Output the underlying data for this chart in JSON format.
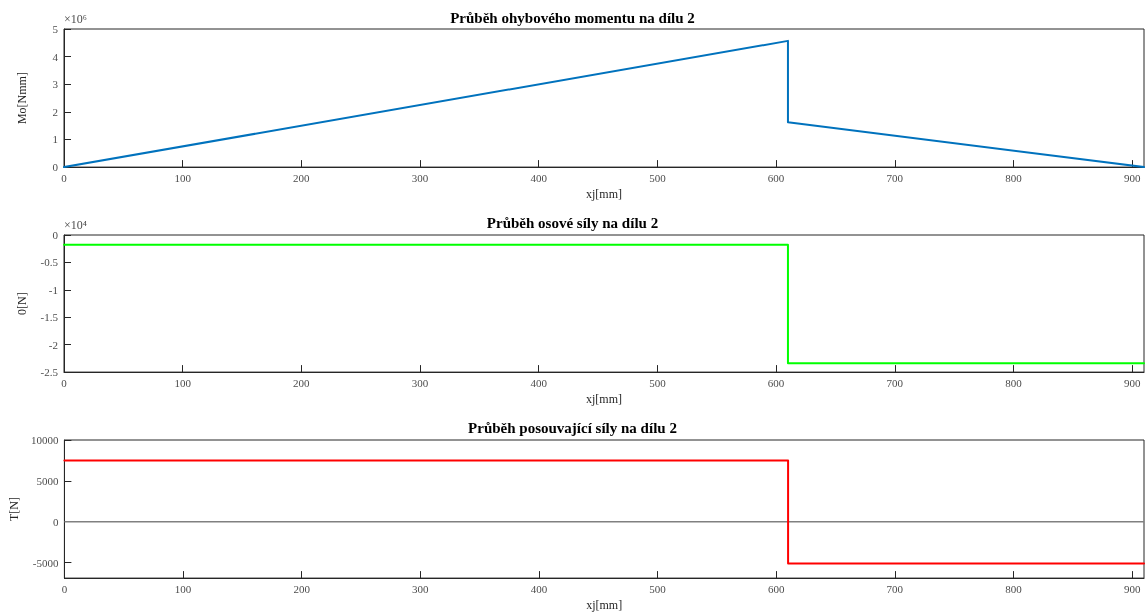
{
  "chart_data": [
    {
      "type": "line",
      "title": "Průběh ohybového momentu na dílu 2",
      "xlabel": "xj[mm]",
      "ylabel": "Mo[Nmm]",
      "annotations": [
        "×10⁶"
      ],
      "series": [
        {
          "color": "#0072bd",
          "x": [
            0,
            610,
            610,
            910
          ],
          "values": [
            0,
            4.57,
            1.62,
            0
          ]
        }
      ],
      "xlim": [
        0,
        910
      ],
      "xticks": [
        0,
        100,
        200,
        300,
        400,
        500,
        600,
        700,
        800,
        900
      ],
      "ylim": [
        0,
        5
      ],
      "yticks": [
        0,
        1,
        2,
        3,
        4,
        5
      ],
      "grid": false,
      "marker": "none",
      "line_style": "solid"
    },
    {
      "type": "line",
      "title": "Průběh osové síly na dílu 2",
      "xlabel": "xj[mm]",
      "ylabel": "0[N]",
      "annotations": [
        "×10⁴"
      ],
      "series": [
        {
          "color": "#00ff00",
          "x": [
            0,
            610,
            610,
            910
          ],
          "values": [
            -0.18,
            -0.18,
            -2.34,
            -2.34
          ]
        }
      ],
      "xlim": [
        0,
        910
      ],
      "xticks": [
        0,
        100,
        200,
        300,
        400,
        500,
        600,
        700,
        800,
        900
      ],
      "ylim": [
        -2.5,
        0
      ],
      "yticks": [
        -2.5,
        -2,
        -1.5,
        -1,
        -0.5,
        0
      ],
      "grid": false,
      "marker": "none",
      "line_style": "solid"
    },
    {
      "type": "line",
      "title": "Průběh posouvající síly na dílu 2",
      "xlabel": "xj[mm]",
      "ylabel": "T[N]",
      "series": [
        {
          "color": "#ff0000",
          "x": [
            0,
            610,
            610,
            910
          ],
          "values": [
            7500,
            7500,
            -5100,
            -5100
          ]
        }
      ],
      "xlim": [
        0,
        910
      ],
      "xticks": [
        0,
        100,
        200,
        300,
        400,
        500,
        600,
        700,
        800,
        900
      ],
      "ylim": [
        -6900,
        10000
      ],
      "yticks": [
        -5000,
        0,
        5000,
        10000
      ],
      "ref_lines": [
        {
          "axis": "y",
          "value": 0,
          "color": "#808080"
        }
      ],
      "grid": false,
      "marker": "none",
      "line_style": "solid"
    }
  ]
}
